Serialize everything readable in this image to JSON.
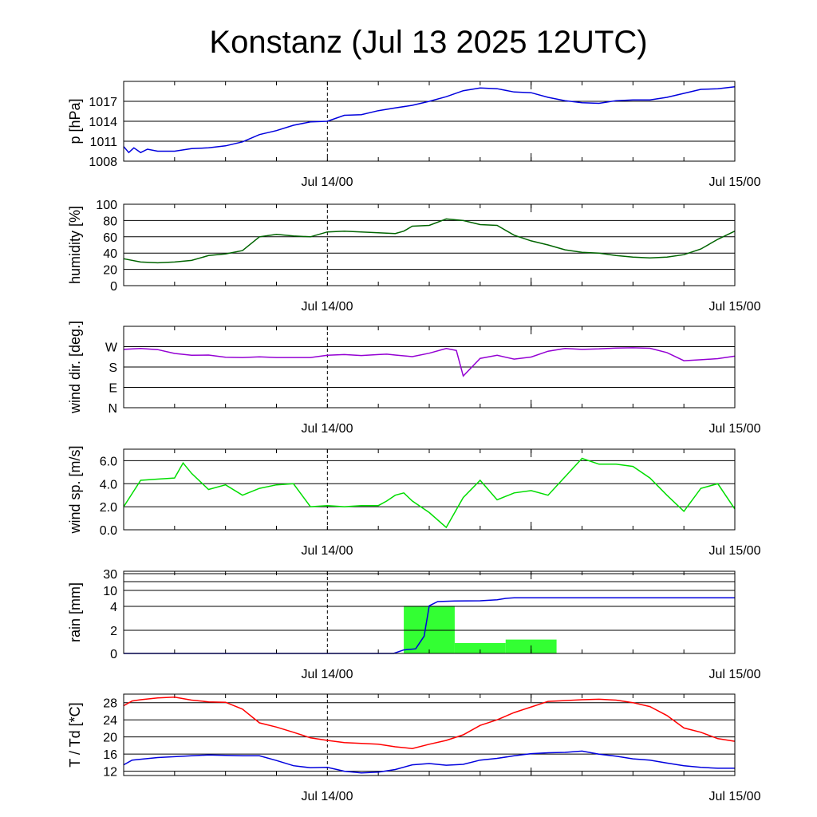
{
  "title": "Konstanz (Jul 13 2025 12UTC)",
  "colors": {
    "pressure": "#0000dd",
    "humidity": "#006400",
    "wind_dir": "#9400d3",
    "wind_speed": "#00dd00",
    "rain_bar": "#33ff33",
    "rain_cum": "#0000dd",
    "temperature": "#ff0000",
    "dewpoint": "#0000dd",
    "grid": "#000000"
  },
  "chart_data": [
    {
      "type": "line",
      "ylabel": "p [hPa]",
      "ylim": [
        1008,
        1020
      ],
      "ticks": [
        {
          "v": 1008,
          "label": "1008"
        },
        {
          "v": 1011,
          "label": "1011"
        },
        {
          "v": 1014,
          "label": "1014"
        },
        {
          "v": 1017,
          "label": "1017"
        }
      ],
      "x_ticks": [
        "Jul 14/00",
        "Jul 15/00"
      ],
      "series": [
        {
          "color_key": "pressure",
          "x": [
            0,
            0.3,
            0.6,
            1,
            1.4,
            2,
            3,
            4,
            5,
            6,
            7,
            8,
            9,
            10,
            11,
            12,
            13,
            14,
            15,
            16,
            17,
            18,
            19,
            20,
            21,
            22,
            23,
            24,
            25,
            26,
            27,
            28,
            29,
            30,
            31,
            32,
            33,
            34,
            35,
            36
          ],
          "y": [
            1010.2,
            1009.3,
            1010.0,
            1009.3,
            1009.8,
            1009.5,
            1009.5,
            1009.9,
            1010.0,
            1010.3,
            1010.9,
            1012.0,
            1012.6,
            1013.4,
            1013.9,
            1014.0,
            1014.9,
            1015.0,
            1015.6,
            1016.0,
            1016.4,
            1017.0,
            1017.7,
            1018.6,
            1019.0,
            1018.9,
            1018.4,
            1018.3,
            1017.6,
            1017.1,
            1016.8,
            1016.7,
            1017.1,
            1017.2,
            1017.2,
            1017.6,
            1018.2,
            1018.8,
            1018.9,
            1019.2
          ]
        }
      ]
    },
    {
      "type": "line",
      "ylabel": "humidity [%]",
      "ylim": [
        0,
        100
      ],
      "ticks": [
        {
          "v": 0,
          "label": "0"
        },
        {
          "v": 20,
          "label": "20"
        },
        {
          "v": 40,
          "label": "40"
        },
        {
          "v": 60,
          "label": "60"
        },
        {
          "v": 80,
          "label": "80"
        },
        {
          "v": 100,
          "label": "100"
        }
      ],
      "x_ticks": [
        "Jul 14/00",
        "Jul 15/00"
      ],
      "series": [
        {
          "color_key": "humidity",
          "x": [
            0,
            1,
            2,
            3,
            4,
            5,
            6,
            7,
            8,
            9,
            10,
            11,
            12,
            13,
            14,
            15,
            16,
            16.5,
            17,
            18,
            19,
            20,
            21,
            22,
            23,
            24,
            25,
            26,
            27,
            28,
            29,
            30,
            31,
            32,
            33,
            34,
            35,
            36
          ],
          "y": [
            33,
            29,
            28,
            29,
            31,
            37,
            39,
            43,
            60,
            63,
            61,
            60,
            66,
            67,
            66,
            65,
            64,
            67,
            73,
            74,
            82,
            80,
            75,
            74,
            62,
            55,
            50,
            44,
            41,
            40,
            37,
            35,
            34,
            35,
            38,
            45,
            57,
            67
          ]
        }
      ]
    },
    {
      "type": "line",
      "ylabel": "wind dir. [deg.]",
      "ylim": [
        0,
        360
      ],
      "ticks": [
        {
          "v": 0,
          "label": "N"
        },
        {
          "v": 90,
          "label": "E"
        },
        {
          "v": 180,
          "label": "S"
        },
        {
          "v": 270,
          "label": "W"
        }
      ],
      "x_ticks": [
        "Jul 14/00",
        "Jul 15/00"
      ],
      "series": [
        {
          "color_key": "wind_dir",
          "x": [
            0,
            1,
            2,
            3,
            4,
            5,
            6,
            7,
            8,
            9,
            10,
            11,
            12,
            13,
            14,
            15,
            15.5,
            16,
            17,
            18,
            19,
            19.6,
            20,
            21,
            22,
            23,
            24,
            25,
            26,
            27,
            28,
            29,
            30,
            31,
            32,
            33,
            34,
            35,
            36
          ],
          "y": [
            258,
            262,
            257,
            240,
            232,
            233,
            223,
            222,
            225,
            222,
            222,
            222,
            232,
            235,
            231,
            235,
            237,
            233,
            226,
            241,
            262,
            253,
            140,
            218,
            232,
            215,
            224,
            250,
            262,
            258,
            260,
            264,
            265,
            263,
            244,
            208,
            212,
            217,
            228
          ]
        }
      ]
    },
    {
      "type": "line",
      "ylabel": "wind sp. [m/s]",
      "ylim": [
        0,
        7
      ],
      "ticks": [
        {
          "v": 0,
          "label": "0.0"
        },
        {
          "v": 2,
          "label": "2.0"
        },
        {
          "v": 4,
          "label": "4.0"
        },
        {
          "v": 6,
          "label": "6.0"
        }
      ],
      "x_ticks": [
        "Jul 14/00",
        "Jul 15/00"
      ],
      "series": [
        {
          "color_key": "wind_speed",
          "x": [
            0,
            1,
            2,
            3,
            3.5,
            4,
            5,
            6,
            7,
            8,
            9,
            10,
            11,
            12,
            13,
            14,
            15,
            15.5,
            16,
            16.5,
            17,
            18,
            19,
            20,
            21,
            22,
            23,
            24,
            25,
            26,
            27,
            28,
            29,
            30,
            31,
            32,
            33,
            34,
            35,
            36
          ],
          "y": [
            2.0,
            4.3,
            4.4,
            4.5,
            5.8,
            4.9,
            3.5,
            3.9,
            3.0,
            3.6,
            3.9,
            4.0,
            2.0,
            2.1,
            2.0,
            2.1,
            2.1,
            2.5,
            3.0,
            3.2,
            2.5,
            1.5,
            0.2,
            2.8,
            4.3,
            2.6,
            3.2,
            3.4,
            3.0,
            4.6,
            6.2,
            5.7,
            5.7,
            5.5,
            4.5,
            3.0,
            1.6,
            3.6,
            4.0,
            1.8
          ]
        }
      ]
    },
    {
      "type": "bar",
      "ylabel": "rain [mm]",
      "ticks": [
        {
          "label": "0"
        },
        {
          "label": "2"
        },
        {
          "label": "4"
        },
        {
          "label": "10"
        },
        {
          "label": "30"
        }
      ],
      "x_ticks": [
        "Jul 14/00",
        "Jul 15/00"
      ],
      "bars": [
        {
          "x0": 16.5,
          "x1": 19.5,
          "value": 4.2
        },
        {
          "x0": 19.5,
          "x1": 22.5,
          "value": 0.9
        },
        {
          "x0": 22.5,
          "x1": 25.5,
          "value": 1.2
        }
      ],
      "series": [
        {
          "color_key": "rain_cum",
          "x": [
            0,
            15,
            15.9,
            16.5,
            17.2,
            17.7,
            18,
            18.5,
            19.5,
            21,
            22,
            22.5,
            23,
            24,
            36
          ],
          "y": [
            0,
            0,
            0,
            0.3,
            0.4,
            1.5,
            4.2,
            5.8,
            6.0,
            6.1,
            6.5,
            7.0,
            7.2,
            7.2,
            7.2
          ]
        }
      ]
    },
    {
      "type": "line",
      "ylabel": "T / Td [*C]",
      "ylim": [
        11,
        30
      ],
      "ticks": [
        {
          "v": 12,
          "label": "12"
        },
        {
          "v": 16,
          "label": "16"
        },
        {
          "v": 20,
          "label": "20"
        },
        {
          "v": 24,
          "label": "24"
        },
        {
          "v": 28,
          "label": "28"
        }
      ],
      "x_ticks": [
        "Jul 14/00",
        "Jul 15/00"
      ],
      "series": [
        {
          "color_key": "temperature",
          "x": [
            0,
            0.5,
            1,
            2,
            3,
            4,
            5,
            6,
            7,
            8,
            9,
            10,
            11,
            12,
            13,
            14,
            15,
            16,
            17,
            18,
            19,
            20,
            21,
            22,
            23,
            24,
            25,
            26,
            27,
            28,
            29,
            30,
            31,
            32,
            33,
            34,
            35,
            36
          ],
          "y": [
            27.3,
            28.4,
            28.7,
            29.1,
            29.3,
            28.6,
            28.2,
            28.1,
            26.5,
            23.3,
            22.3,
            21.1,
            19.8,
            19.2,
            18.7,
            18.5,
            18.3,
            17.7,
            17.3,
            18.3,
            19.2,
            20.5,
            22.7,
            24.0,
            25.7,
            27.0,
            28.3,
            28.5,
            28.7,
            28.8,
            28.6,
            28.0,
            27.1,
            25.0,
            22.1,
            21.1,
            19.6,
            19.0
          ]
        },
        {
          "color_key": "dewpoint",
          "x": [
            0,
            0.5,
            1,
            2,
            3,
            4,
            5,
            6,
            7,
            8,
            9,
            10,
            11,
            12,
            13,
            14,
            15,
            16,
            17,
            18,
            19,
            20,
            21,
            22,
            23,
            24,
            25,
            26,
            27,
            28,
            29,
            30,
            31,
            32,
            33,
            34,
            35,
            36
          ],
          "y": [
            13.5,
            14.6,
            14.8,
            15.2,
            15.4,
            15.6,
            15.8,
            15.7,
            15.6,
            15.6,
            14.5,
            13.3,
            12.8,
            12.9,
            12.0,
            11.6,
            11.8,
            12.4,
            13.5,
            13.8,
            13.4,
            13.6,
            14.6,
            15.0,
            15.6,
            16.1,
            16.3,
            16.4,
            16.7,
            16.0,
            15.5,
            14.9,
            14.6,
            13.9,
            13.3,
            12.9,
            12.7,
            12.7
          ]
        }
      ]
    }
  ]
}
